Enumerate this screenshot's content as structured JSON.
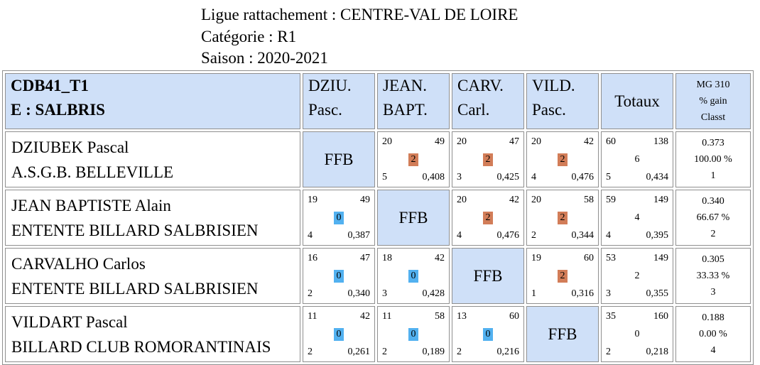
{
  "header": {
    "ligue": "Ligue rattachement : CENTRE-VAL DE LOIRE",
    "categorie": "Catégorie : R1",
    "saison": "Saison : 2020-2021"
  },
  "table": {
    "title_line1": "CDB41_T1",
    "title_line2": "E : SALBRIS",
    "col_headers": [
      {
        "line1": "DZIU.",
        "line2": "Pasc."
      },
      {
        "line1": "JEAN.",
        "line2": "BAPT."
      },
      {
        "line1": "CARV.",
        "line2": "Carl."
      },
      {
        "line1": "VILD.",
        "line2": "Pasc."
      }
    ],
    "totals_header": "Totaux",
    "mg_header": {
      "line1": "MG 310",
      "line2": "% gain",
      "line3": "Classt"
    },
    "ffb_label": "FFB",
    "rows": [
      {
        "name": "DZIUBEK Pascal",
        "club": "A.S.G.B. BELLEVILLE",
        "cells": [
          null,
          {
            "tl": "20",
            "tr": "49",
            "pts": "2",
            "bl": "5",
            "br": "0,408"
          },
          {
            "tl": "20",
            "tr": "47",
            "pts": "2",
            "bl": "3",
            "br": "0,425"
          },
          {
            "tl": "20",
            "tr": "42",
            "pts": "2",
            "bl": "4",
            "br": "0,476"
          }
        ],
        "totals": {
          "tl": "60",
          "tr": "138",
          "pts": "6",
          "bl": "5",
          "br": "0,434"
        },
        "mg": {
          "moyenne": "0.373",
          "pct": "100.00 %",
          "rank": "1"
        }
      },
      {
        "name": "JEAN BAPTISTE Alain",
        "club": "ENTENTE BILLARD SALBRISIEN",
        "cells": [
          {
            "tl": "19",
            "tr": "49",
            "pts": "0",
            "bl": "4",
            "br": "0,387"
          },
          null,
          {
            "tl": "20",
            "tr": "42",
            "pts": "2",
            "bl": "4",
            "br": "0,476"
          },
          {
            "tl": "20",
            "tr": "58",
            "pts": "2",
            "bl": "2",
            "br": "0,344"
          }
        ],
        "totals": {
          "tl": "59",
          "tr": "149",
          "pts": "4",
          "bl": "4",
          "br": "0,395"
        },
        "mg": {
          "moyenne": "0.340",
          "pct": "66.67 %",
          "rank": "2"
        }
      },
      {
        "name": "CARVALHO Carlos",
        "club": "ENTENTE BILLARD SALBRISIEN",
        "cells": [
          {
            "tl": "16",
            "tr": "47",
            "pts": "0",
            "bl": "2",
            "br": "0,340"
          },
          {
            "tl": "18",
            "tr": "42",
            "pts": "0",
            "bl": "3",
            "br": "0,428"
          },
          null,
          {
            "tl": "19",
            "tr": "60",
            "pts": "2",
            "bl": "1",
            "br": "0,316"
          }
        ],
        "totals": {
          "tl": "53",
          "tr": "149",
          "pts": "2",
          "bl": "3",
          "br": "0,355"
        },
        "mg": {
          "moyenne": "0.305",
          "pct": "33.33 %",
          "rank": "3"
        }
      },
      {
        "name": "VILDART Pascal",
        "club": "BILLARD CLUB ROMORANTINAIS",
        "cells": [
          {
            "tl": "11",
            "tr": "42",
            "pts": "0",
            "bl": "2",
            "br": "0,261"
          },
          {
            "tl": "11",
            "tr": "58",
            "pts": "0",
            "bl": "2",
            "br": "0,189"
          },
          {
            "tl": "13",
            "tr": "60",
            "pts": "0",
            "bl": "2",
            "br": "0,216"
          },
          null
        ],
        "totals": {
          "tl": "35",
          "tr": "160",
          "pts": "0",
          "bl": "2",
          "br": "0,218"
        },
        "mg": {
          "moyenne": "0.188",
          "pct": "0.00 %",
          "rank": "4"
        }
      }
    ]
  },
  "colors": {
    "header_bg": "#cfe0f8",
    "win_badge": "#d27d58",
    "lose_badge": "#52b1f0",
    "border": "#8f8f8f"
  }
}
